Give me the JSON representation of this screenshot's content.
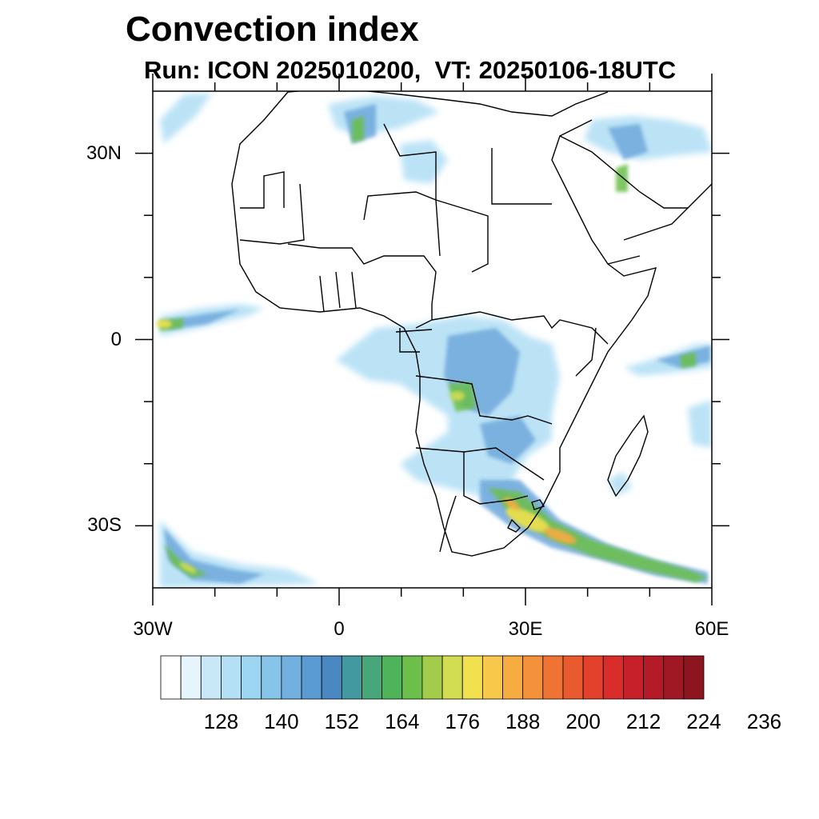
{
  "title": "Convection index",
  "subtitle": "Run: ICON 2025010200,  VT: 20250106-18UTC",
  "map": {
    "lon_range": [
      -30,
      60
    ],
    "lat_range": [
      -40,
      40
    ],
    "lon_ticks": [
      {
        "value": -30,
        "label": "30W"
      },
      {
        "value": 0,
        "label": "0"
      },
      {
        "value": 30,
        "label": "30E"
      },
      {
        "value": 60,
        "label": "60E"
      }
    ],
    "lat_ticks": [
      {
        "value": 30,
        "label": "30N"
      },
      {
        "value": 0,
        "label": "0"
      },
      {
        "value": -30,
        "label": "30S"
      }
    ],
    "minor_lon_ticks": [
      -20,
      -10,
      10,
      20,
      40,
      50
    ],
    "minor_lat_ticks": [
      20,
      10,
      -10,
      -20
    ]
  },
  "colorbar": {
    "colors": [
      "#ffffff",
      "#e6f5fc",
      "#c9e8f7",
      "#b4e0f5",
      "#9dd6f2",
      "#86c4ea",
      "#72b0e0",
      "#5a9bd4",
      "#4a88c2",
      "#4399a0",
      "#47a77a",
      "#4fb35a",
      "#6bbf4a",
      "#a3cc4c",
      "#d3dd52",
      "#f2e14e",
      "#f8c84b",
      "#f7ac42",
      "#f4923b",
      "#ef7434",
      "#e95a2e",
      "#e3412c",
      "#d92d2b",
      "#c8202a",
      "#b41a27",
      "#a01824",
      "#8c1520"
    ],
    "labels": [
      "128",
      "140",
      "152",
      "164",
      "176",
      "188",
      "200",
      "212",
      "224",
      "236"
    ]
  }
}
